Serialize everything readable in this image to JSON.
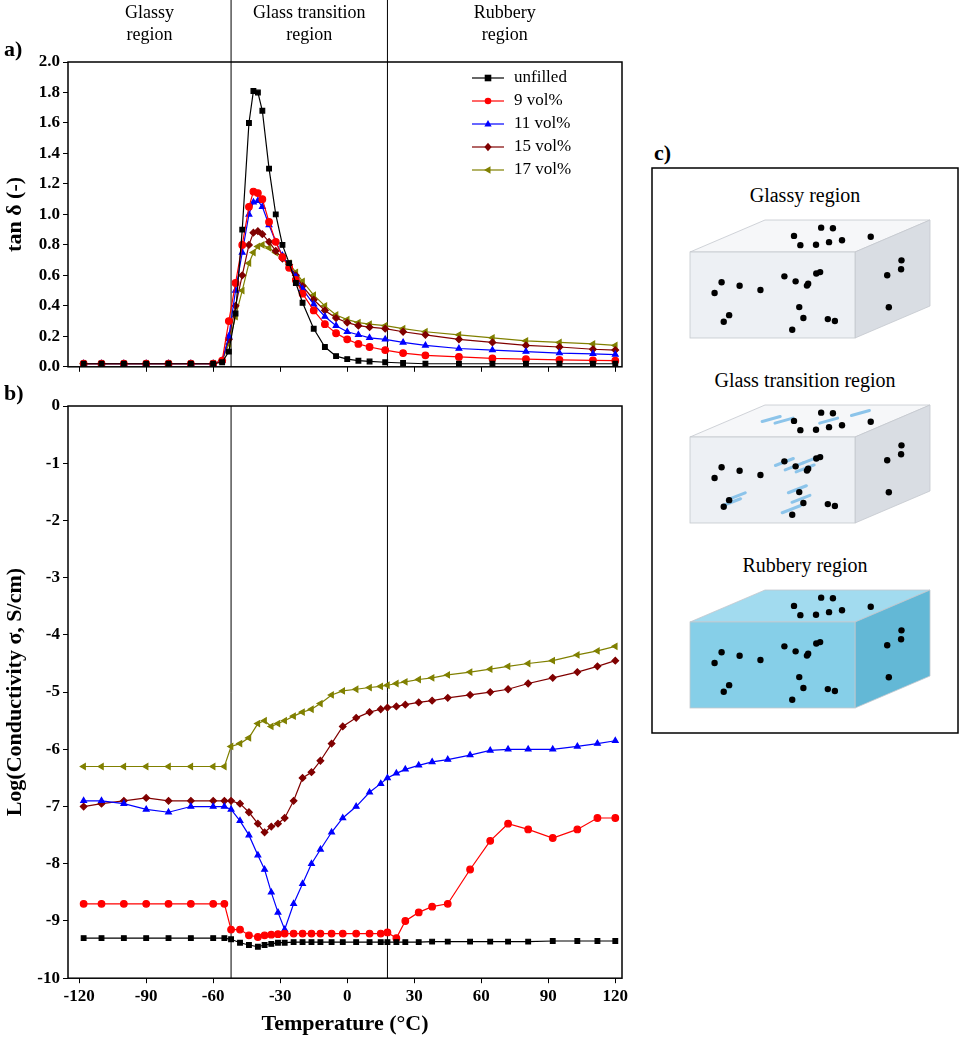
{
  "chart_data": [
    {
      "panel": "a)",
      "type": "line",
      "ylabel": "tan δ (-)",
      "x": [
        -118,
        -110,
        -100,
        -90,
        -80,
        -70,
        -60,
        -56,
        -53,
        -50,
        -47,
        -44,
        -42,
        -40,
        -38,
        -35,
        -32,
        -29,
        -26,
        -23,
        -20,
        -15,
        -10,
        -5,
        0,
        5,
        10,
        17,
        25,
        35,
        50,
        65,
        80,
        95,
        110,
        120
      ],
      "xlim": [
        -125,
        123
      ],
      "xticks": [
        -120,
        -90,
        -60,
        -30,
        0,
        30,
        60,
        90,
        120
      ],
      "ylim": [
        0,
        2
      ],
      "yticks": [
        {
          "value": 0,
          "label": "0.0"
        },
        0.2,
        0.4,
        0.6,
        0.8,
        {
          "value": 1,
          "label": "1.0"
        },
        1.2,
        1.4,
        1.6,
        1.8,
        {
          "value": 2,
          "label": "2.0"
        }
      ],
      "vlines": [
        -52,
        18
      ],
      "regions": [
        "Glassy region",
        "Glass transition region",
        "Rubbery region"
      ],
      "grid": false,
      "legend": "upper right",
      "tick_labels": "y",
      "series": [
        {
          "name": "unfilled",
          "color": "#000000",
          "marker": "square",
          "values": [
            0.02,
            0.02,
            0.02,
            0.02,
            0.02,
            0.02,
            0.02,
            0.03,
            0.1,
            0.35,
            0.9,
            1.6,
            1.81,
            1.8,
            1.68,
            1.3,
            1.0,
            0.8,
            0.68,
            0.55,
            0.42,
            0.25,
            0.13,
            0.07,
            0.05,
            0.04,
            0.035,
            0.03,
            0.025,
            0.02,
            0.02,
            0.02,
            0.02,
            0.02,
            0.02,
            0.02
          ]
        },
        {
          "name": "9 vol%",
          "color": "#ff0000",
          "marker": "circle",
          "values": [
            0.02,
            0.02,
            0.02,
            0.02,
            0.02,
            0.02,
            0.02,
            0.04,
            0.3,
            0.55,
            0.8,
            1.05,
            1.15,
            1.14,
            1.1,
            0.95,
            0.82,
            0.72,
            0.65,
            0.57,
            0.48,
            0.37,
            0.28,
            0.22,
            0.18,
            0.15,
            0.13,
            0.11,
            0.09,
            0.075,
            0.065,
            0.055,
            0.05,
            0.045,
            0.042,
            0.04
          ]
        },
        {
          "name": "11 vol%",
          "color": "#0000ff",
          "marker": "triangle",
          "values": [
            0.02,
            0.02,
            0.02,
            0.02,
            0.02,
            0.02,
            0.02,
            0.04,
            0.2,
            0.5,
            0.75,
            1.0,
            1.08,
            1.09,
            1.05,
            0.93,
            0.82,
            0.73,
            0.66,
            0.59,
            0.51,
            0.41,
            0.33,
            0.27,
            0.23,
            0.21,
            0.19,
            0.18,
            0.16,
            0.14,
            0.12,
            0.11,
            0.1,
            0.09,
            0.085,
            0.08
          ]
        },
        {
          "name": "15 vol%",
          "color": "#800000",
          "marker": "diamond",
          "values": [
            0.02,
            0.02,
            0.02,
            0.02,
            0.02,
            0.02,
            0.02,
            0.04,
            0.18,
            0.4,
            0.6,
            0.8,
            0.88,
            0.89,
            0.87,
            0.82,
            0.76,
            0.71,
            0.67,
            0.6,
            0.53,
            0.44,
            0.37,
            0.32,
            0.29,
            0.27,
            0.26,
            0.25,
            0.23,
            0.21,
            0.18,
            0.16,
            0.14,
            0.13,
            0.115,
            0.11
          ]
        },
        {
          "name": "17 vol%",
          "color": "#808000",
          "marker": "triangle-left",
          "values": [
            0.02,
            0.02,
            0.02,
            0.02,
            0.02,
            0.02,
            0.02,
            0.04,
            0.15,
            0.33,
            0.5,
            0.68,
            0.75,
            0.79,
            0.8,
            0.78,
            0.75,
            0.72,
            0.68,
            0.62,
            0.56,
            0.47,
            0.4,
            0.34,
            0.31,
            0.29,
            0.28,
            0.27,
            0.25,
            0.23,
            0.21,
            0.19,
            0.17,
            0.16,
            0.15,
            0.14
          ]
        }
      ]
    },
    {
      "panel": "b)",
      "type": "line",
      "xlabel": "Temperature (°C)",
      "ylabel": "Log(Conductivity σ, S/cm)",
      "x": [
        -118,
        -110,
        -100,
        -90,
        -80,
        -70,
        -60,
        -55,
        -52,
        -48,
        -44,
        -40,
        -37,
        -34,
        -31,
        -28,
        -24,
        -20,
        -16,
        -12,
        -7,
        -2,
        4,
        10,
        15,
        18,
        22,
        26,
        32,
        38,
        45,
        55,
        64,
        72,
        81,
        92,
        103,
        112,
        120
      ],
      "xlim": [
        -125,
        123
      ],
      "xticks": [
        -120,
        -90,
        -60,
        -30,
        0,
        30,
        60,
        90,
        120
      ],
      "ylim": [
        -10,
        0
      ],
      "yticks": [
        -10,
        -9,
        -8,
        -7,
        -6,
        -5,
        -4,
        -3,
        -2,
        -1,
        0
      ],
      "vlines": [
        -52,
        18
      ],
      "grid": false,
      "series": [
        {
          "color": "#000000",
          "marker": "square",
          "values": [
            -9.3,
            -9.3,
            -9.3,
            -9.3,
            -9.3,
            -9.3,
            -9.3,
            -9.3,
            -9.32,
            -9.38,
            -9.42,
            -9.45,
            -9.42,
            -9.4,
            -9.38,
            -9.38,
            -9.37,
            -9.37,
            -9.37,
            -9.37,
            -9.37,
            -9.37,
            -9.37,
            -9.37,
            -9.37,
            -9.37,
            -9.37,
            -9.37,
            -9.37,
            -9.36,
            -9.36,
            -9.36,
            -9.36,
            -9.36,
            -9.36,
            -9.35,
            -9.35,
            -9.35,
            -9.35
          ]
        },
        {
          "color": "#ff0000",
          "marker": "circle",
          "values": [
            -8.7,
            -8.7,
            -8.7,
            -8.7,
            -8.7,
            -8.7,
            -8.7,
            -8.7,
            -9.15,
            -9.15,
            -9.25,
            -9.28,
            -9.25,
            -9.24,
            -9.23,
            -9.22,
            -9.22,
            -9.22,
            -9.22,
            -9.22,
            -9.22,
            -9.22,
            -9.22,
            -9.22,
            -9.22,
            -9.2,
            -9.3,
            -9.0,
            -8.85,
            -8.75,
            -8.7,
            -8.1,
            -7.6,
            -7.3,
            -7.4,
            -7.55,
            -7.4,
            -7.2,
            -7.2
          ]
        },
        {
          "color": "#0000ff",
          "marker": "triangle",
          "values": [
            -6.9,
            -6.9,
            -6.95,
            -7.05,
            -7.1,
            -7.0,
            -7.0,
            -7.0,
            -7.05,
            -7.25,
            -7.5,
            -7.85,
            -8.1,
            -8.5,
            -8.85,
            -9.15,
            -8.7,
            -8.35,
            -8.0,
            -7.75,
            -7.45,
            -7.2,
            -7.0,
            -6.75,
            -6.6,
            -6.5,
            -6.42,
            -6.35,
            -6.28,
            -6.22,
            -6.18,
            -6.1,
            -6.02,
            -6.0,
            -6.0,
            -6.0,
            -5.95,
            -5.9,
            -5.85
          ]
        },
        {
          "color": "#800000",
          "marker": "diamond",
          "values": [
            -7.0,
            -6.95,
            -6.9,
            -6.85,
            -6.9,
            -6.9,
            -6.9,
            -6.9,
            -6.9,
            -6.95,
            -7.1,
            -7.3,
            -7.45,
            -7.35,
            -7.3,
            -7.2,
            -6.9,
            -6.5,
            -6.4,
            -6.2,
            -5.9,
            -5.6,
            -5.45,
            -5.35,
            -5.3,
            -5.27,
            -5.25,
            -5.22,
            -5.18,
            -5.15,
            -5.1,
            -5.05,
            -5.0,
            -4.95,
            -4.85,
            -4.75,
            -4.65,
            -4.55,
            -4.45
          ]
        },
        {
          "color": "#808000",
          "marker": "triangle-left",
          "values": [
            -6.3,
            -6.3,
            -6.3,
            -6.3,
            -6.3,
            -6.3,
            -6.3,
            -6.3,
            -5.95,
            -5.9,
            -5.8,
            -5.55,
            -5.5,
            -5.6,
            -5.55,
            -5.5,
            -5.42,
            -5.35,
            -5.3,
            -5.2,
            -5.05,
            -4.98,
            -4.95,
            -4.92,
            -4.9,
            -4.88,
            -4.85,
            -4.82,
            -4.78,
            -4.75,
            -4.7,
            -4.65,
            -4.6,
            -4.55,
            -4.5,
            -4.45,
            -4.35,
            -4.28,
            -4.2
          ]
        }
      ]
    }
  ],
  "diagram": {
    "panel": "c)",
    "boxes": [
      {
        "label": "Glassy region"
      },
      {
        "label": "Glass transition region"
      },
      {
        "label": "Rubbery region"
      }
    ]
  }
}
